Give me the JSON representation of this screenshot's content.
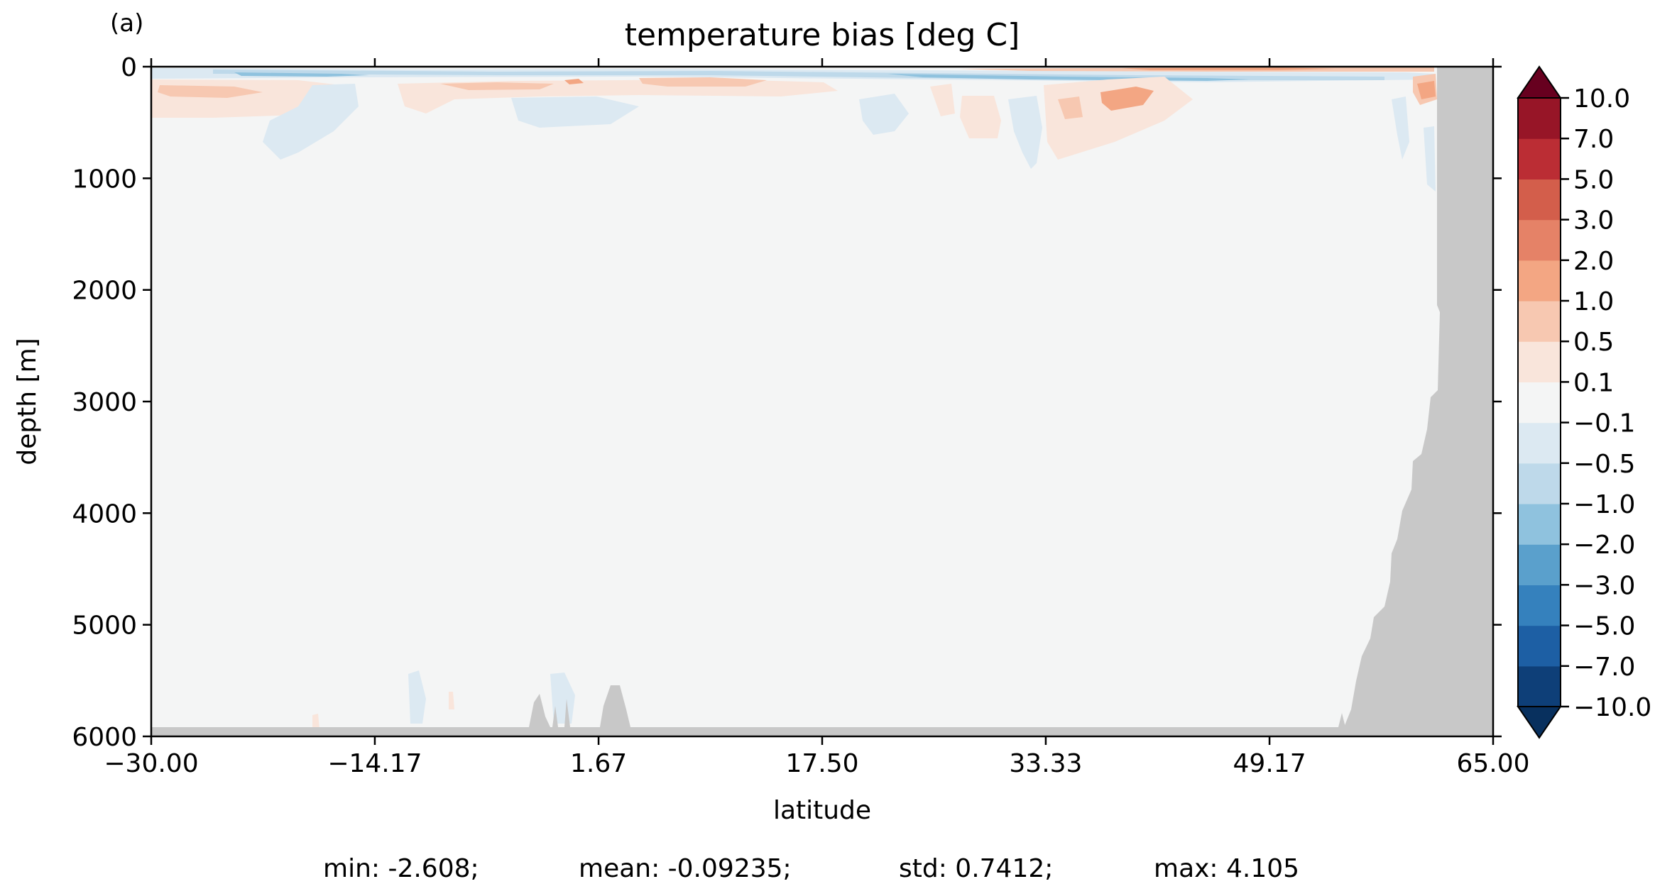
{
  "panel_label": "(a)",
  "chart_data": {
    "type": "heatmap",
    "title": "temperature bias [deg C]",
    "xlabel": "latitude",
    "ylabel": "depth [m]",
    "xlim": [
      -30.0,
      65.0
    ],
    "ylim": [
      0,
      6000
    ],
    "y_inverted": true,
    "x_ticks": [
      "−30.00",
      "−14.17",
      "1.67",
      "17.50",
      "33.33",
      "49.17",
      "65.00"
    ],
    "x_tick_values": [
      -30.0,
      -14.17,
      1.67,
      17.5,
      33.33,
      49.17,
      65.0
    ],
    "y_ticks": [
      "0",
      "1000",
      "2000",
      "3000",
      "4000",
      "5000",
      "6000"
    ],
    "y_tick_values": [
      0,
      1000,
      2000,
      3000,
      4000,
      5000,
      6000
    ],
    "colorbar": {
      "levels": [
        -10.0,
        -7.0,
        -5.0,
        -3.0,
        -2.0,
        -1.0,
        -0.5,
        -0.1,
        0.1,
        0.5,
        1.0,
        2.0,
        3.0,
        5.0,
        7.0,
        10.0
      ],
      "tick_labels": [
        "−10.0",
        "−7.0",
        "−5.0",
        "−3.0",
        "−2.0",
        "−1.0",
        "−0.5",
        "−0.1",
        "0.1",
        "0.5",
        "1.0",
        "2.0",
        "3.0",
        "5.0",
        "7.0",
        "10.0"
      ],
      "colors": [
        "#0e3f78",
        "#1d5fa4",
        "#3581bd",
        "#5aa0cc",
        "#8fc2de",
        "#bed9ea",
        "#dce9f2",
        "#f4f5f5",
        "#f9e5db",
        "#f7c8b1",
        "#f3a683",
        "#e58267",
        "#d35e4b",
        "#bb2d34",
        "#971527"
      ],
      "under_color": "#08305e",
      "over_color": "#67001f",
      "extend": "both"
    },
    "background_value_color": "#f4f5f5",
    "land_color": "#c8c8c8",
    "stats_text": [
      "min: -2.608;",
      "mean: -0.09235;",
      "std: 0.7412;",
      "max: 4.105"
    ]
  }
}
